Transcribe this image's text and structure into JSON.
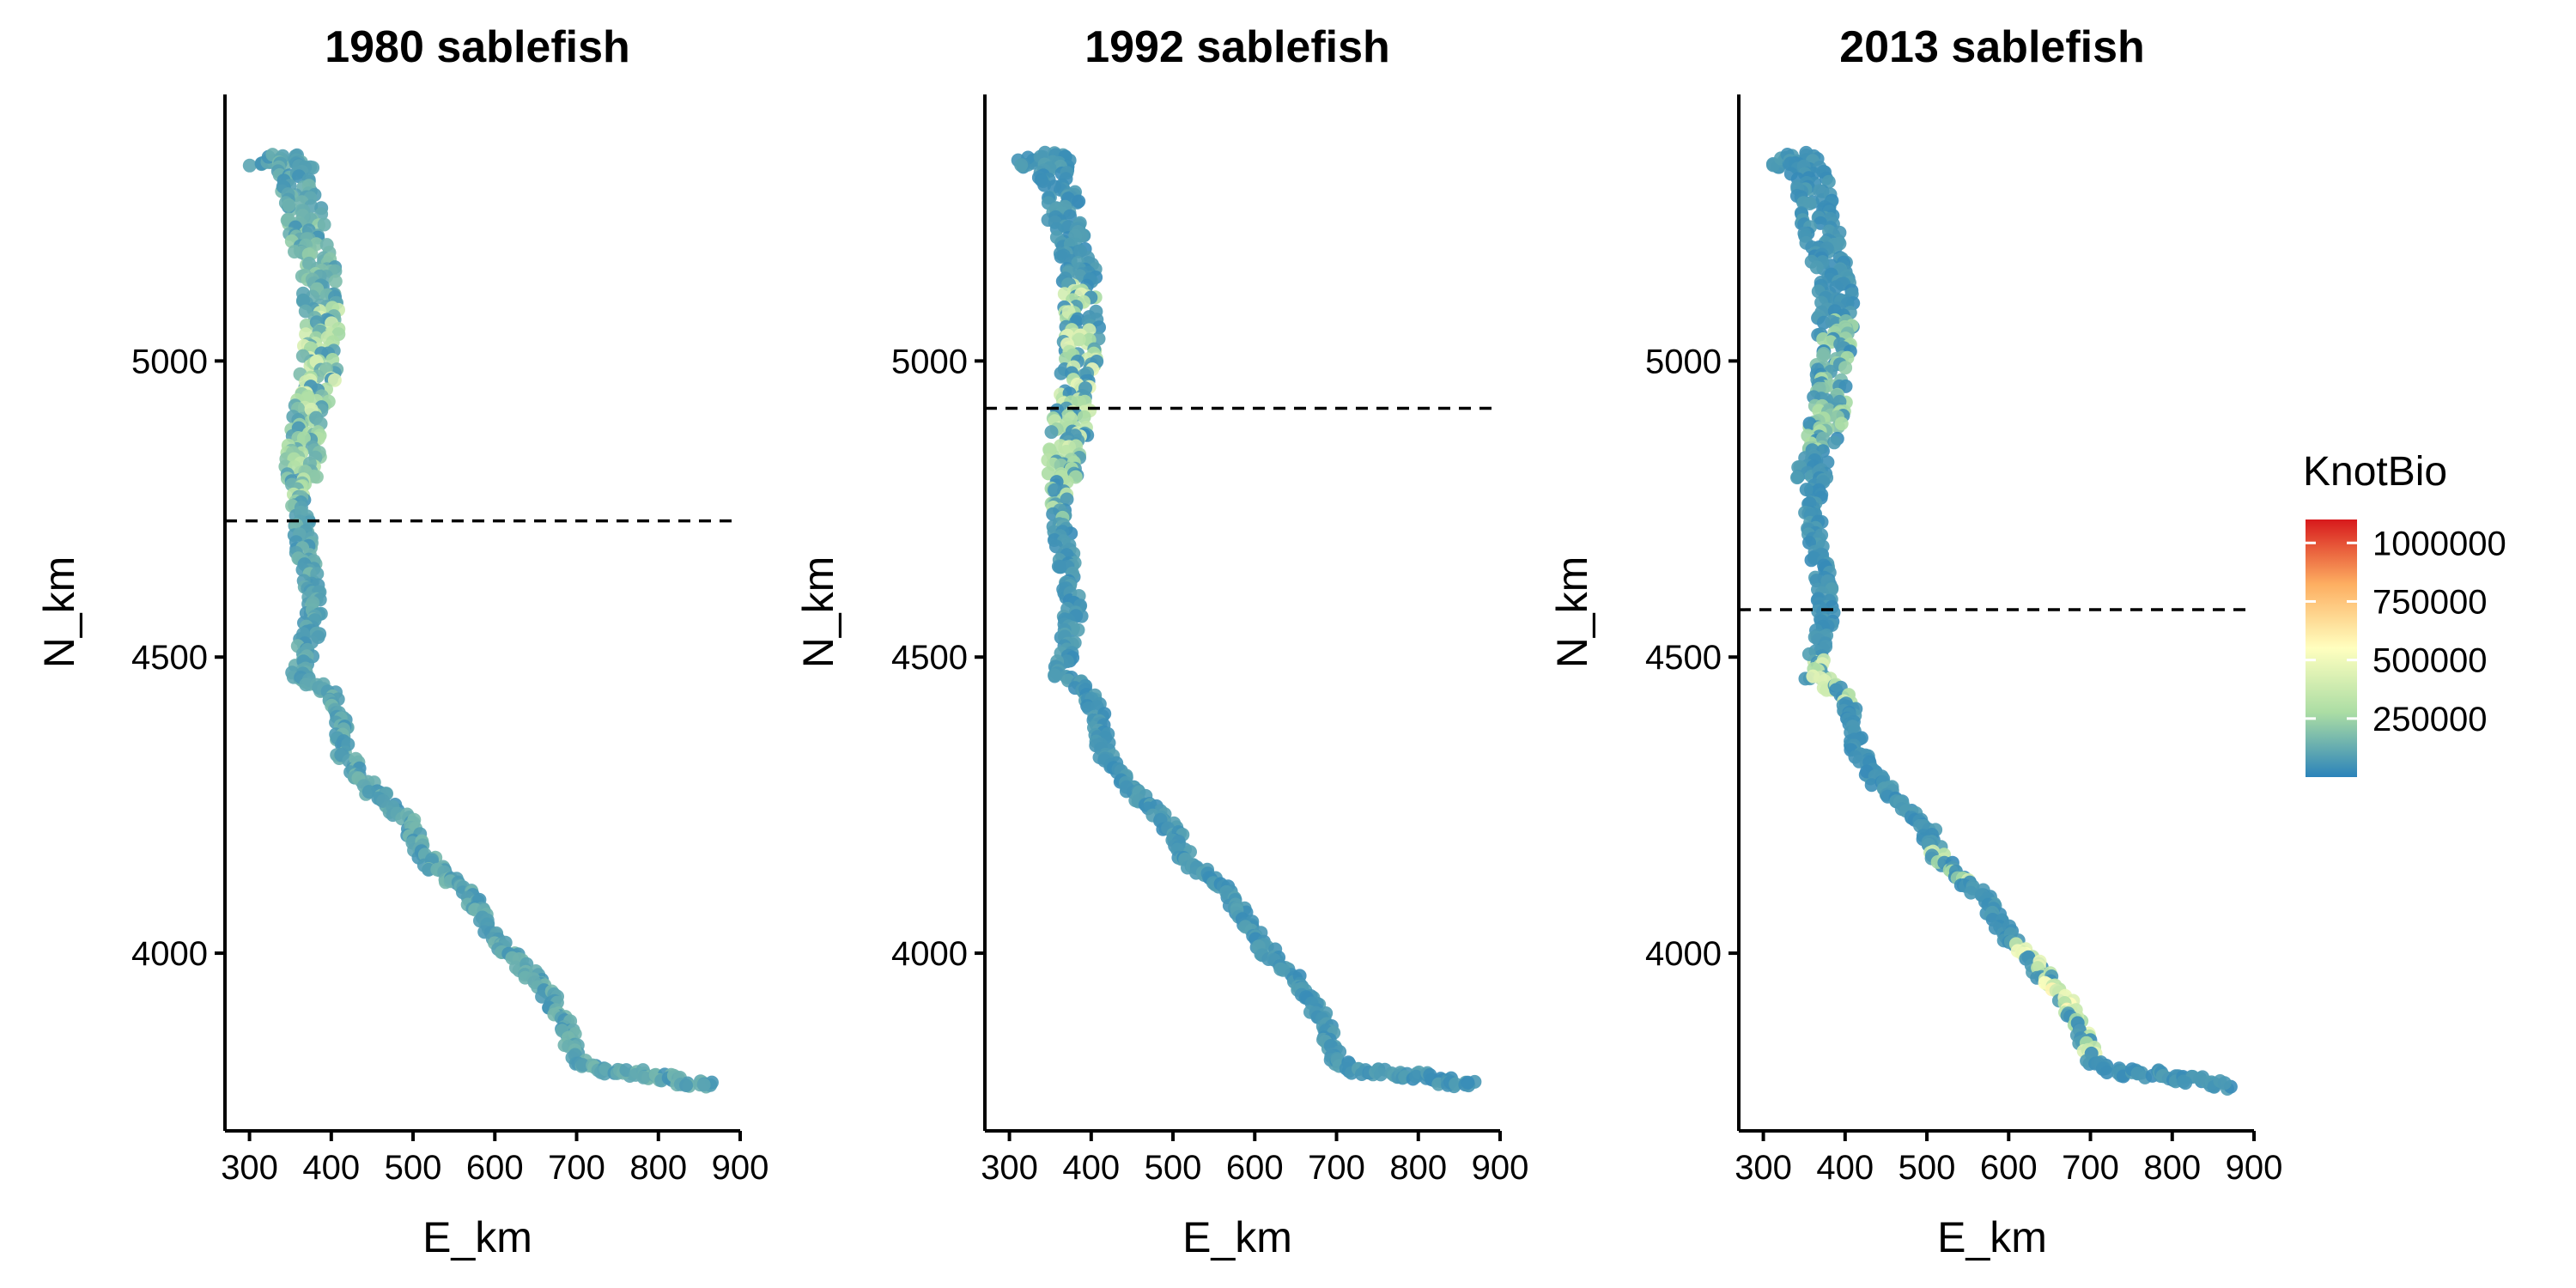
{
  "chart_data": [
    {
      "type": "scatter",
      "title": "1980 sablefish",
      "xlabel": "E_km",
      "ylabel": "N_km",
      "xlim": [
        270,
        900
      ],
      "ylim": [
        3700,
        5450
      ],
      "x_ticks": [
        300,
        400,
        500,
        600,
        700,
        800,
        900
      ],
      "y_ticks": [
        4000,
        4500,
        5000
      ],
      "reference_line": {
        "y": 4730,
        "style": "dashed"
      },
      "hotspots": [
        {
          "lat": 5000,
          "half": 90,
          "value": 420000
        },
        {
          "lat": 4900,
          "half": 100,
          "value": 300000
        },
        {
          "lat": 4790,
          "half": 40,
          "value": 330000
        },
        {
          "lat": 5180,
          "half": 60,
          "value": 220000
        }
      ],
      "baseline_value": 120000
    },
    {
      "type": "scatter",
      "title": "1992 sablefish",
      "xlabel": "E_km",
      "ylabel": "N_km",
      "xlim": [
        270,
        900
      ],
      "ylim": [
        3700,
        5450
      ],
      "x_ticks": [
        300,
        400,
        500,
        600,
        700,
        800,
        900
      ],
      "y_ticks": [
        4000,
        4500,
        5000
      ],
      "reference_line": {
        "y": 4920,
        "style": "dashed"
      },
      "hotspots": [
        {
          "lat": 5020,
          "half": 110,
          "value": 460000
        },
        {
          "lat": 4890,
          "half": 50,
          "value": 420000
        },
        {
          "lat": 4780,
          "half": 60,
          "value": 330000
        }
      ],
      "baseline_value": 70000
    },
    {
      "type": "scatter",
      "title": "2013 sablefish",
      "xlabel": "E_km",
      "ylabel": "N_km",
      "xlim": [
        270,
        900
      ],
      "ylim": [
        3700,
        5450
      ],
      "x_ticks": [
        300,
        400,
        500,
        600,
        700,
        800,
        900
      ],
      "y_ticks": [
        4000,
        4500,
        5000
      ],
      "reference_line": {
        "y": 4580,
        "style": "dashed"
      },
      "hotspots": [
        {
          "lat": 4960,
          "half": 110,
          "value": 280000
        },
        {
          "lat": 4460,
          "half": 40,
          "value": 480000
        },
        {
          "lat": 4150,
          "half": 30,
          "value": 380000
        },
        {
          "lat": 3960,
          "half": 60,
          "value": 560000
        },
        {
          "lat": 3870,
          "half": 50,
          "value": 470000
        }
      ],
      "baseline_value": 60000
    }
  ],
  "coastline": [
    [
      320,
      5330
    ],
    [
      350,
      5345
    ],
    [
      360,
      5300
    ],
    [
      370,
      5220
    ],
    [
      385,
      5150
    ],
    [
      390,
      5060
    ],
    [
      385,
      4980
    ],
    [
      375,
      4900
    ],
    [
      365,
      4820
    ],
    [
      360,
      4760
    ],
    [
      365,
      4700
    ],
    [
      372,
      4640
    ],
    [
      378,
      4580
    ],
    [
      375,
      4540
    ],
    [
      360,
      4470
    ],
    [
      395,
      4440
    ],
    [
      410,
      4400
    ],
    [
      415,
      4340
    ],
    [
      440,
      4290
    ],
    [
      470,
      4250
    ],
    [
      500,
      4210
    ],
    [
      515,
      4160
    ],
    [
      540,
      4130
    ],
    [
      570,
      4100
    ],
    [
      590,
      4050
    ],
    [
      610,
      4010
    ],
    [
      640,
      3970
    ],
    [
      670,
      3920
    ],
    [
      690,
      3870
    ],
    [
      700,
      3820
    ],
    [
      730,
      3800
    ],
    [
      790,
      3795
    ],
    [
      870,
      3775
    ]
  ],
  "legend": {
    "title": "KnotBio",
    "labels": [
      "1000000",
      "750000",
      "500000",
      "250000"
    ],
    "tick_values": [
      1000000,
      750000,
      500000,
      250000
    ],
    "min": 0,
    "max": 1100000,
    "colors": [
      "#2b83ba",
      "#abdda4",
      "#ffffbf",
      "#fdae61",
      "#d7191c"
    ]
  }
}
